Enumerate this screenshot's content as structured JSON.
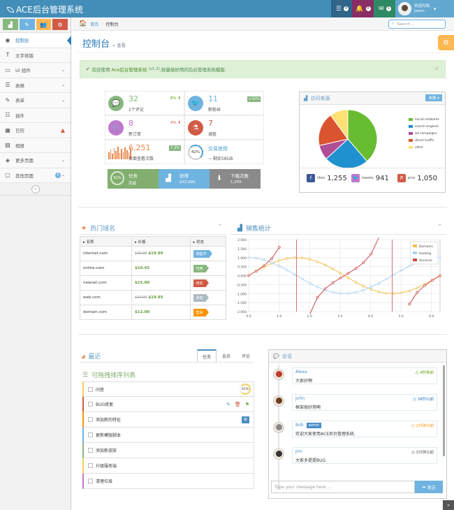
{
  "brand": "ACE后台管理系统",
  "topbar": {
    "tasks_count": "4",
    "notif_count": "8",
    "msg_count": "5",
    "welcome": "欢迎光临,",
    "username": "Jason"
  },
  "shortcuts": [
    "✓",
    "✎",
    "👥",
    "⚙"
  ],
  "menu": [
    {
      "label": "控制台",
      "icon": "◉",
      "active": true
    },
    {
      "label": "文字排版",
      "icon": "T"
    },
    {
      "label": "UI 组件",
      "icon": "▭",
      "arrow": true
    },
    {
      "label": "表格",
      "icon": "☰",
      "arrow": true
    },
    {
      "label": "表单",
      "icon": "✎",
      "arrow": true
    },
    {
      "label": "插件",
      "icon": "☷"
    },
    {
      "label": "日历",
      "icon": "▦",
      "warn": true
    },
    {
      "label": "相册",
      "icon": "▨"
    },
    {
      "label": "更多页面",
      "icon": "◈",
      "arrow": true
    },
    {
      "label": "其他页面",
      "icon": "▢",
      "badge": "5",
      "arrow": true
    }
  ],
  "breadcrumb": {
    "home": "首页",
    "current": "控制台"
  },
  "search": {
    "placeholder": "Search ..."
  },
  "page": {
    "title": "控制台",
    "subtitle": "查看"
  },
  "alert": {
    "prefix": "欢迎使用",
    "brand": "Ace后台管理系统",
    "version": "(v1.2)",
    "suffix": ",轻量级好用的后台管理系统模版."
  },
  "infoboxes": [
    {
      "num": "32",
      "label": "2个评论",
      "stat": "8%",
      "dir": "up",
      "color": "#87b87f",
      "glyph": "💬"
    },
    {
      "num": "11",
      "label": "新粉丝",
      "pill": "+32%",
      "color": "#6fb3e0",
      "glyph": "🐦"
    },
    {
      "num": "8",
      "label": "新订单",
      "stat": "4%",
      "dir": "down",
      "color": "#c077ce",
      "glyph": "🛒"
    },
    {
      "num": "7",
      "label": "调查",
      "color": "#d15b47",
      "glyph": "⚗"
    },
    {
      "num": "6,251",
      "label": "页面查看次数",
      "pill": "7.2%"
    },
    {
      "num": "交易使用",
      "label": "~ 剩余58GB",
      "ring": "42%"
    }
  ],
  "darkboxes": [
    {
      "r": "61%",
      "t1": "任务",
      "t2": "完成",
      "color": "#82af6f"
    },
    {
      "t1": "获得",
      "t2": "$32,000",
      "color": "#6fb3e0"
    },
    {
      "t1": "下载次数",
      "t2": "1,205",
      "color": "#8a8a8a"
    }
  ],
  "traffic": {
    "title": "访问来源",
    "button": "本周",
    "chart_data": {
      "type": "pie",
      "slices": [
        {
          "name": "social networks",
          "value": 38.7,
          "color": "#68bc31"
        },
        {
          "name": "search engines",
          "value": 24.5,
          "color": "#2091cf"
        },
        {
          "name": "ad campaigns",
          "value": 8.2,
          "color": "#af4e96"
        },
        {
          "name": "direct traffic",
          "value": 18.6,
          "color": "#da5430"
        },
        {
          "name": "other",
          "value": 10,
          "color": "#fee074"
        }
      ]
    }
  },
  "social": [
    {
      "name": "likes",
      "value": "1,255",
      "color": "#3b5998",
      "glyph": "f"
    },
    {
      "name": "tweets",
      "value": "941",
      "color": "#c077ce",
      "glyph": "🐦"
    },
    {
      "name": "pins",
      "value": "1,050",
      "color": "#d15b47",
      "glyph": "P"
    }
  ],
  "domains": {
    "title": "热门域名",
    "cols": [
      "名称",
      "价格",
      "状态"
    ],
    "rows": [
      {
        "name": "internet.com",
        "old": "$29.99",
        "price": "$19.99",
        "status": "销售中",
        "color": "#6fb3e0"
      },
      {
        "name": "online.com",
        "old": "",
        "price": "$16.45",
        "status": "可用",
        "color": "#87b87f"
      },
      {
        "name": "newnet.com",
        "old": "",
        "price": "$15.00",
        "status": "待定",
        "color": "#d15b47"
      },
      {
        "name": "web.com",
        "old": "$24.99",
        "price": "$19.95",
        "status": "未知",
        "color": "#abbac3"
      },
      {
        "name": "domain.com",
        "old": "",
        "price": "$12.00",
        "status": "售尚",
        "color": "#f89406"
      }
    ]
  },
  "sales": {
    "title": "销售统计",
    "chart_data": {
      "type": "line",
      "xlim": [
        0,
        6.28
      ],
      "ylim": [
        -2,
        2
      ],
      "yticks": [
        "2.000",
        "1.500",
        "1.000",
        "0.500",
        "0.000",
        "-0.500",
        "-1.000",
        "-1.500",
        "-2.000"
      ],
      "xticks": [
        "0.0",
        "1.0",
        "2.0",
        "3.0",
        "4.0",
        "5.0",
        "6.0"
      ],
      "series": [
        {
          "name": "Domains",
          "fn": "sin",
          "color": "#f2c050"
        },
        {
          "name": "Hosting",
          "fn": "cos",
          "color": "#afd2f0"
        },
        {
          "name": "Services",
          "fn": "tan",
          "color": "#cb4b4b"
        }
      ]
    }
  },
  "recent": {
    "title": "最近",
    "tabs": [
      "任务",
      "会员",
      "评论"
    ],
    "list_title": "可拖拽排序列表",
    "tasks": [
      {
        "label": "问答",
        "border": "#f3cf5a",
        "pct": "42%"
      },
      {
        "label": "BUG修复",
        "border": "#d15b47",
        "actions": true
      },
      {
        "label": "添加新的特征",
        "border": "#f89406",
        "gear": true
      },
      {
        "label": "更新模版脚本",
        "border": "#6fb3e0"
      },
      {
        "label": "添加新皮肤",
        "border": "#87b87f"
      },
      {
        "label": "升级服务端",
        "border": "#f3cf5a"
      },
      {
        "label": "清理垃圾",
        "border": "#c077ce"
      }
    ]
  },
  "chat": {
    "title": "会话",
    "send": "发送",
    "placeholder": "Type your message here ...",
    "msgs": [
      {
        "name": "Alexa",
        "time": "4秒钟前",
        "text": "大家好啊",
        "tcolor": "#6aa40f",
        "face": "#c0392b"
      },
      {
        "name": "John",
        "time": "38秒以前",
        "text": "框架很好用啊",
        "tcolor": "#2a7bb5",
        "face": "#6b3e1e"
      },
      {
        "name": "Bob",
        "time": "2分钟以前",
        "text": "欢迎大家使用ACE后台管理系统.",
        "tcolor": "#f89406",
        "face": "#888",
        "admin": "admin"
      },
      {
        "name": "Jim",
        "time": "3分钟以前",
        "text": "大家多提提BUG",
        "tcolor": "#555",
        "face": "#333"
      }
    ]
  }
}
